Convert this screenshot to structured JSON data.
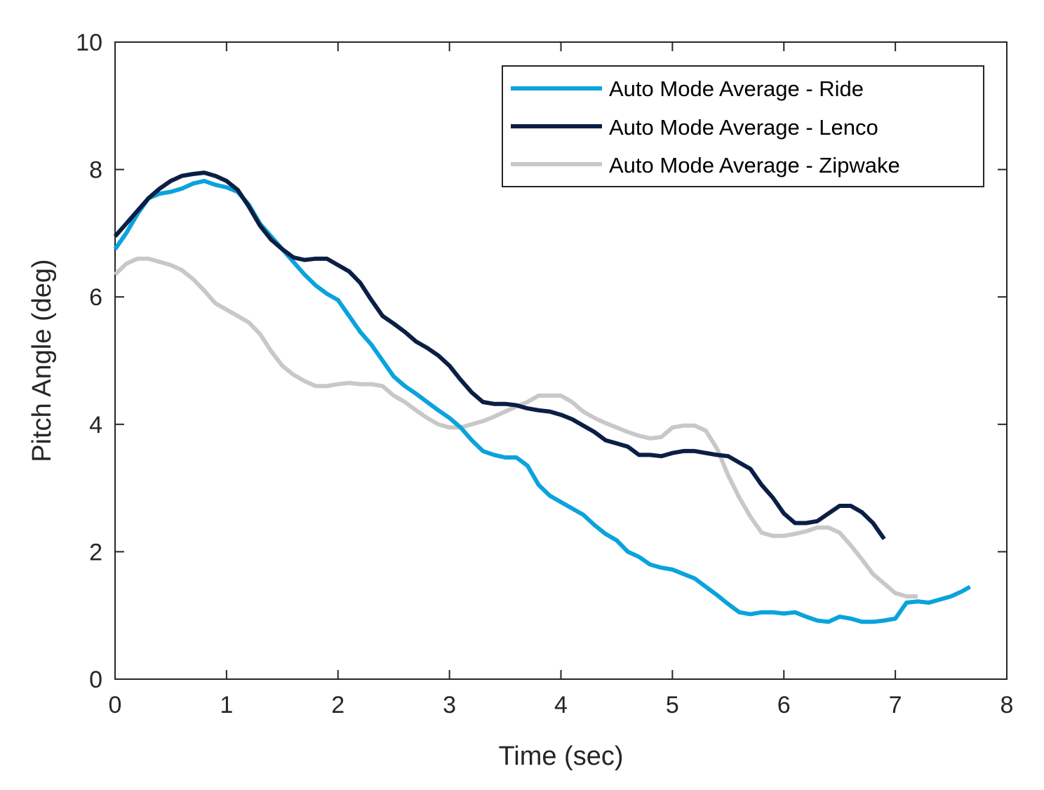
{
  "chart_data": {
    "type": "line",
    "title": "",
    "xlabel": "Time (sec)",
    "ylabel": "Pitch Angle (deg)",
    "xlim": [
      0,
      8
    ],
    "ylim": [
      0,
      10
    ],
    "xticks": [
      0,
      1,
      2,
      3,
      4,
      5,
      6,
      7,
      8
    ],
    "yticks": [
      0,
      2,
      4,
      6,
      8,
      10
    ],
    "xtick_labels": [
      "0",
      "1",
      "2",
      "3",
      "4",
      "5",
      "6",
      "7",
      "8"
    ],
    "ytick_labels": [
      "0",
      "2",
      "4",
      "6",
      "8",
      "10"
    ],
    "grid": false,
    "legend_position": "top-right",
    "series": [
      {
        "name": "Auto Mode Average - Ride",
        "color": "#0AA3DD",
        "x": [
          0.0,
          0.1,
          0.2,
          0.3,
          0.4,
          0.5,
          0.6,
          0.7,
          0.8,
          0.9,
          1.0,
          1.1,
          1.2,
          1.3,
          1.4,
          1.5,
          1.6,
          1.7,
          1.8,
          1.9,
          2.0,
          2.1,
          2.2,
          2.3,
          2.4,
          2.5,
          2.6,
          2.7,
          2.8,
          2.9,
          3.0,
          3.1,
          3.2,
          3.3,
          3.4,
          3.5,
          3.6,
          3.7,
          3.8,
          3.9,
          4.0,
          4.1,
          4.2,
          4.3,
          4.4,
          4.5,
          4.6,
          4.7,
          4.8,
          4.9,
          5.0,
          5.1,
          5.2,
          5.3,
          5.4,
          5.5,
          5.6,
          5.7,
          5.8,
          5.9,
          6.0,
          6.1,
          6.2,
          6.3,
          6.4,
          6.5,
          6.6,
          6.7,
          6.8,
          6.9,
          7.0,
          7.1,
          7.2,
          7.3,
          7.4,
          7.5,
          7.6,
          7.67
        ],
        "values": [
          6.75,
          7.0,
          7.3,
          7.55,
          7.62,
          7.65,
          7.7,
          7.78,
          7.82,
          7.76,
          7.72,
          7.65,
          7.45,
          7.15,
          6.95,
          6.75,
          6.55,
          6.35,
          6.18,
          6.05,
          5.95,
          5.7,
          5.45,
          5.25,
          5.0,
          4.75,
          4.6,
          4.48,
          4.35,
          4.22,
          4.1,
          3.95,
          3.75,
          3.58,
          3.52,
          3.48,
          3.48,
          3.35,
          3.05,
          2.88,
          2.78,
          2.68,
          2.58,
          2.42,
          2.28,
          2.18,
          2.0,
          1.92,
          1.8,
          1.75,
          1.72,
          1.65,
          1.58,
          1.45,
          1.32,
          1.18,
          1.05,
          1.02,
          1.05,
          1.05,
          1.03,
          1.05,
          0.98,
          0.92,
          0.9,
          0.98,
          0.95,
          0.9,
          0.9,
          0.92,
          0.95,
          1.2,
          1.22,
          1.2,
          1.25,
          1.3,
          1.38,
          1.45
        ]
      },
      {
        "name": "Auto Mode Average - Lenco",
        "color": "#0B1F45",
        "x": [
          0.0,
          0.1,
          0.2,
          0.3,
          0.4,
          0.5,
          0.6,
          0.7,
          0.8,
          0.9,
          1.0,
          1.1,
          1.2,
          1.3,
          1.4,
          1.5,
          1.6,
          1.7,
          1.8,
          1.9,
          2.0,
          2.1,
          2.2,
          2.3,
          2.4,
          2.5,
          2.6,
          2.7,
          2.8,
          2.9,
          3.0,
          3.1,
          3.2,
          3.3,
          3.4,
          3.5,
          3.6,
          3.7,
          3.8,
          3.9,
          4.0,
          4.1,
          4.2,
          4.3,
          4.4,
          4.5,
          4.6,
          4.7,
          4.8,
          4.9,
          5.0,
          5.1,
          5.2,
          5.3,
          5.4,
          5.5,
          5.6,
          5.7,
          5.8,
          5.9,
          6.0,
          6.1,
          6.2,
          6.3,
          6.4,
          6.5,
          6.6,
          6.7,
          6.8,
          6.9
        ],
        "values": [
          6.95,
          7.15,
          7.35,
          7.55,
          7.7,
          7.82,
          7.9,
          7.93,
          7.95,
          7.9,
          7.82,
          7.68,
          7.42,
          7.12,
          6.9,
          6.75,
          6.62,
          6.58,
          6.6,
          6.6,
          6.5,
          6.4,
          6.22,
          5.95,
          5.7,
          5.58,
          5.45,
          5.3,
          5.2,
          5.08,
          4.92,
          4.7,
          4.5,
          4.35,
          4.32,
          4.32,
          4.3,
          4.25,
          4.22,
          4.2,
          4.15,
          4.08,
          3.98,
          3.88,
          3.75,
          3.7,
          3.65,
          3.52,
          3.52,
          3.5,
          3.55,
          3.58,
          3.58,
          3.55,
          3.52,
          3.5,
          3.4,
          3.3,
          3.05,
          2.85,
          2.6,
          2.45,
          2.45,
          2.48,
          2.6,
          2.72,
          2.72,
          2.62,
          2.45,
          2.2
        ]
      },
      {
        "name": "Auto Mode Average - Zipwake",
        "color": "#C8C8C8",
        "x": [
          0.0,
          0.1,
          0.2,
          0.3,
          0.4,
          0.5,
          0.6,
          0.7,
          0.8,
          0.9,
          1.0,
          1.1,
          1.2,
          1.3,
          1.4,
          1.5,
          1.6,
          1.7,
          1.8,
          1.9,
          2.0,
          2.1,
          2.2,
          2.3,
          2.4,
          2.5,
          2.6,
          2.7,
          2.8,
          2.9,
          3.0,
          3.1,
          3.2,
          3.3,
          3.4,
          3.5,
          3.6,
          3.7,
          3.8,
          3.9,
          4.0,
          4.1,
          4.2,
          4.3,
          4.4,
          4.5,
          4.6,
          4.7,
          4.8,
          4.9,
          5.0,
          5.1,
          5.2,
          5.3,
          5.4,
          5.5,
          5.6,
          5.7,
          5.8,
          5.9,
          6.0,
          6.1,
          6.2,
          6.3,
          6.4,
          6.5,
          6.6,
          6.7,
          6.8,
          6.9,
          7.0,
          7.1,
          7.2
        ],
        "values": [
          6.35,
          6.52,
          6.6,
          6.6,
          6.55,
          6.5,
          6.42,
          6.28,
          6.1,
          5.9,
          5.8,
          5.7,
          5.6,
          5.42,
          5.15,
          4.92,
          4.78,
          4.68,
          4.6,
          4.6,
          4.63,
          4.65,
          4.63,
          4.63,
          4.6,
          4.45,
          4.35,
          4.22,
          4.1,
          4.0,
          3.95,
          3.95,
          4.0,
          4.05,
          4.12,
          4.2,
          4.28,
          4.35,
          4.45,
          4.45,
          4.45,
          4.35,
          4.2,
          4.1,
          4.02,
          3.95,
          3.88,
          3.82,
          3.78,
          3.8,
          3.95,
          3.98,
          3.98,
          3.9,
          3.62,
          3.2,
          2.85,
          2.55,
          2.3,
          2.25,
          2.25,
          2.28,
          2.32,
          2.38,
          2.38,
          2.3,
          2.1,
          1.88,
          1.65,
          1.5,
          1.35,
          1.3,
          1.3
        ]
      }
    ]
  }
}
